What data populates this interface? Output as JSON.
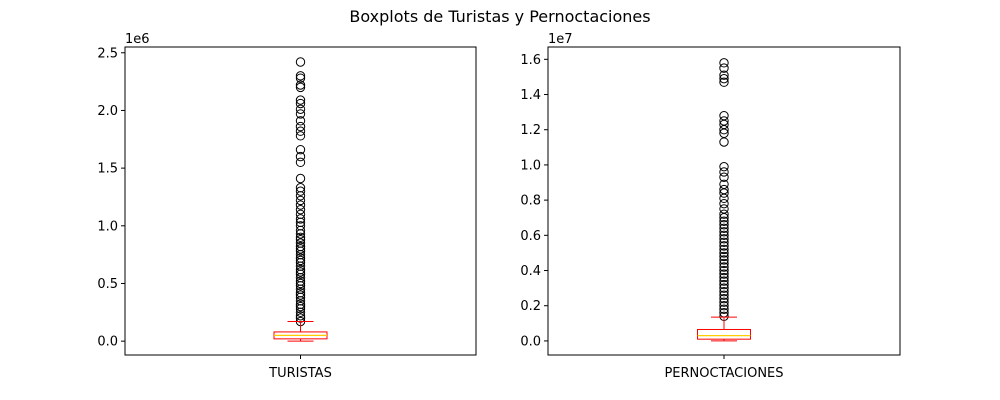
{
  "figure_title": "Boxplots de Turistas y Pernoctaciones",
  "colors": {
    "box": "#ff0000",
    "median": "#ffcc00",
    "outlier": "#000000",
    "axes": "#000000"
  },
  "chart_data": [
    {
      "type": "boxplot",
      "category": "TURISTAS",
      "multiplier_label": "1e6",
      "ylim": [
        -0.12,
        2.55
      ],
      "yticks": [
        0.0,
        0.5,
        1.0,
        1.5,
        2.0,
        2.5
      ],
      "ytick_labels": [
        "0.0",
        "0.5",
        "1.0",
        "1.5",
        "2.0",
        "2.5"
      ],
      "whisker_low": 0.0,
      "q1": 0.02,
      "median": 0.05,
      "q3": 0.08,
      "whisker_high": 0.17,
      "outliers": [
        0.17,
        0.2,
        0.22,
        0.25,
        0.28,
        0.3,
        0.32,
        0.35,
        0.38,
        0.4,
        0.42,
        0.45,
        0.48,
        0.5,
        0.52,
        0.55,
        0.58,
        0.6,
        0.62,
        0.65,
        0.68,
        0.7,
        0.72,
        0.75,
        0.78,
        0.8,
        0.82,
        0.85,
        0.88,
        0.9,
        0.93,
        0.96,
        1.0,
        1.03,
        1.06,
        1.1,
        1.14,
        1.18,
        1.22,
        1.26,
        1.3,
        1.33,
        1.41,
        1.55,
        1.6,
        1.66,
        1.78,
        1.82,
        1.86,
        1.91,
        1.97,
        2.01,
        2.06,
        2.09,
        2.2,
        2.22,
        2.28,
        2.3,
        2.42
      ]
    },
    {
      "type": "boxplot",
      "category": "PERNOCTACIONES",
      "multiplier_label": "1e7",
      "ylim": [
        -0.08,
        1.67
      ],
      "yticks": [
        0.0,
        0.2,
        0.4,
        0.6,
        0.8,
        1.0,
        1.2,
        1.4,
        1.6
      ],
      "ytick_labels": [
        "0.0",
        "0.2",
        "0.4",
        "0.6",
        "0.8",
        "1.0",
        "1.2",
        "1.4",
        "1.6"
      ],
      "whisker_low": 0.0,
      "q1": 0.01,
      "median": 0.03,
      "q3": 0.065,
      "whisker_high": 0.135,
      "outliers": [
        0.14,
        0.16,
        0.18,
        0.2,
        0.22,
        0.24,
        0.26,
        0.28,
        0.3,
        0.32,
        0.34,
        0.36,
        0.38,
        0.4,
        0.42,
        0.44,
        0.46,
        0.48,
        0.5,
        0.52,
        0.54,
        0.56,
        0.58,
        0.6,
        0.62,
        0.64,
        0.66,
        0.68,
        0.7,
        0.72,
        0.75,
        0.78,
        0.81,
        0.84,
        0.86,
        0.89,
        0.93,
        0.96,
        0.99,
        1.13,
        1.18,
        1.2,
        1.23,
        1.25,
        1.28,
        1.47,
        1.49,
        1.51,
        1.55,
        1.58
      ]
    }
  ]
}
